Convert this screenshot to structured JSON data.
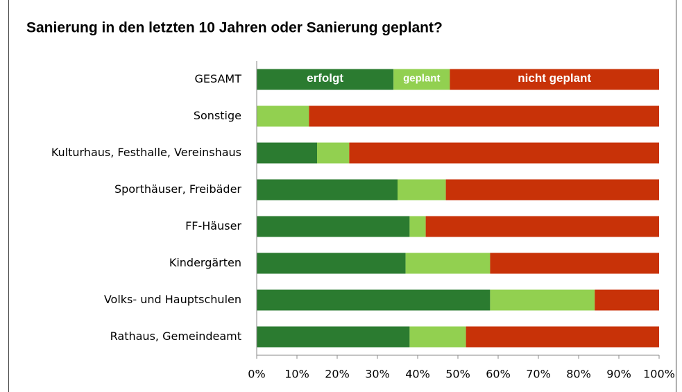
{
  "chart_data": {
    "type": "stacked-barh",
    "title": "Sanierung in den letzten 10 Jahren oder Sanierung geplant?",
    "categories": [
      "GESAMT",
      "Sonstige",
      "Kulturhaus, Festhalle, Vereinshaus",
      "Sporthäuser, Freibäder",
      "FF-Häuser",
      "Kindergärten",
      "Volks- und Hauptschulen",
      "Rathaus, Gemeindeamt"
    ],
    "series": [
      {
        "name": "erfolgt",
        "color": "#2b7b30",
        "values": [
          34,
          0,
          15,
          35,
          38,
          37,
          58,
          38
        ]
      },
      {
        "name": "geplant",
        "color": "#92d050",
        "values": [
          14,
          13,
          8,
          12,
          4,
          21,
          26,
          14
        ]
      },
      {
        "name": "nicht geplant",
        "color": "#c83208",
        "values": [
          52,
          87,
          77,
          53,
          58,
          42,
          16,
          48
        ]
      }
    ],
    "xlim": [
      0,
      100
    ],
    "xticks": [
      {
        "value": 0,
        "label": "0%"
      },
      {
        "value": 10,
        "label": "10%"
      },
      {
        "value": 20,
        "label": "20%"
      },
      {
        "value": 30,
        "label": "30%"
      },
      {
        "value": 40,
        "label": "40%"
      },
      {
        "value": 50,
        "label": "50%"
      },
      {
        "value": 60,
        "label": "60%"
      },
      {
        "value": 70,
        "label": "70%"
      },
      {
        "value": 80,
        "label": "80%"
      },
      {
        "value": 90,
        "label": "90%"
      },
      {
        "value": 100,
        "label": "100%"
      }
    ]
  }
}
